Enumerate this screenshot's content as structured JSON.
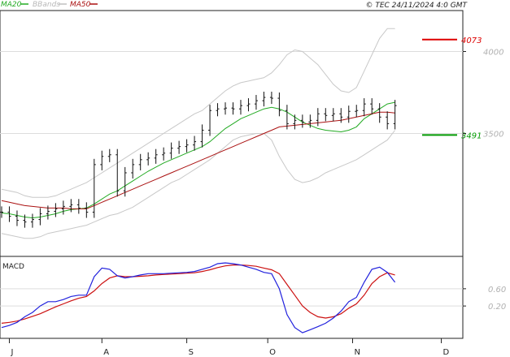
{
  "header": {
    "legend": [
      {
        "label": "MA20",
        "color": "#22aa22"
      },
      {
        "label": "BBands",
        "color": "#c0c0c0"
      },
      {
        "label": "MA50",
        "color": "#aa1111"
      }
    ],
    "copyright": "© TEC 24/11/2024 4:0 GMT"
  },
  "indicator": {
    "label": "MACD"
  },
  "chart_data": {
    "type": "line",
    "price": {
      "x": [
        0,
        2,
        4,
        6,
        8,
        10,
        12,
        14,
        16,
        18,
        20,
        22,
        24,
        26,
        28,
        30,
        32,
        34,
        36,
        38,
        40,
        42,
        44,
        46,
        48,
        50,
        52,
        54,
        56,
        58,
        60,
        62,
        64,
        66,
        68,
        70,
        72,
        74,
        76,
        78,
        80,
        82,
        84,
        86,
        88,
        90,
        92,
        94,
        96,
        98,
        100,
        102
      ],
      "close": [
        3020,
        2995,
        2970,
        2960,
        2975,
        3010,
        3025,
        3040,
        3055,
        3065,
        3045,
        3020,
        3310,
        3360,
        3370,
        3150,
        3260,
        3310,
        3340,
        3350,
        3370,
        3380,
        3410,
        3420,
        3430,
        3450,
        3520,
        3640,
        3650,
        3655,
        3650,
        3670,
        3680,
        3700,
        3720,
        3715,
        3640,
        3560,
        3580,
        3570,
        3580,
        3620,
        3610,
        3620,
        3600,
        3635,
        3640,
        3680,
        3650,
        3600,
        3560,
        3670
      ],
      "ma20": [
        3015,
        3010,
        3000,
        2990,
        2985,
        2990,
        3000,
        3010,
        3025,
        3035,
        3040,
        3045,
        3070,
        3100,
        3130,
        3150,
        3180,
        3210,
        3240,
        3270,
        3295,
        3320,
        3340,
        3360,
        3380,
        3400,
        3420,
        3450,
        3490,
        3530,
        3560,
        3590,
        3610,
        3630,
        3650,
        3660,
        3650,
        3630,
        3600,
        3570,
        3550,
        3530,
        3520,
        3515,
        3510,
        3520,
        3540,
        3590,
        3620,
        3650,
        3680,
        3690
      ],
      "ma50": [
        3090,
        3080,
        3070,
        3060,
        3055,
        3050,
        3045,
        3045,
        3045,
        3040,
        3040,
        3040,
        3060,
        3080,
        3100,
        3120,
        3140,
        3160,
        3180,
        3200,
        3220,
        3240,
        3260,
        3280,
        3300,
        3320,
        3340,
        3360,
        3380,
        3400,
        3420,
        3440,
        3460,
        3480,
        3500,
        3520,
        3540,
        3545,
        3550,
        3555,
        3560,
        3565,
        3570,
        3575,
        3580,
        3590,
        3600,
        3610,
        3620,
        3630,
        3630,
        3625
      ],
      "bb_upper": [
        3160,
        3150,
        3140,
        3120,
        3110,
        3110,
        3110,
        3120,
        3140,
        3160,
        3180,
        3200,
        3230,
        3260,
        3290,
        3320,
        3350,
        3380,
        3410,
        3440,
        3470,
        3500,
        3530,
        3560,
        3590,
        3620,
        3640,
        3680,
        3720,
        3760,
        3790,
        3810,
        3820,
        3830,
        3840,
        3870,
        3920,
        3980,
        4010,
        4000,
        3960,
        3920,
        3860,
        3800,
        3760,
        3750,
        3780,
        3880,
        3980,
        4080,
        4140,
        4140
      ],
      "bb_lower": [
        2890,
        2880,
        2870,
        2860,
        2860,
        2870,
        2890,
        2900,
        2910,
        2920,
        2930,
        2940,
        2960,
        2980,
        3000,
        3010,
        3030,
        3050,
        3080,
        3110,
        3140,
        3170,
        3200,
        3220,
        3250,
        3280,
        3310,
        3340,
        3380,
        3420,
        3460,
        3480,
        3490,
        3500,
        3500,
        3460,
        3360,
        3280,
        3220,
        3200,
        3210,
        3230,
        3260,
        3280,
        3300,
        3320,
        3340,
        3370,
        3400,
        3430,
        3460,
        3520
      ]
    },
    "macd": {
      "x": [
        0,
        2,
        4,
        6,
        8,
        10,
        12,
        14,
        16,
        18,
        20,
        22,
        24,
        26,
        28,
        30,
        32,
        34,
        36,
        38,
        40,
        42,
        44,
        46,
        48,
        50,
        52,
        54,
        56,
        58,
        60,
        62,
        64,
        66,
        68,
        70,
        72,
        74,
        76,
        78,
        80,
        82,
        84,
        86,
        88,
        90,
        92,
        94,
        96,
        98,
        100,
        102
      ],
      "macd": [
        -0.3,
        -0.25,
        -0.18,
        -0.05,
        0.05,
        0.2,
        0.3,
        0.3,
        0.35,
        0.42,
        0.45,
        0.45,
        0.88,
        1.08,
        1.05,
        0.9,
        0.85,
        0.88,
        0.92,
        0.95,
        0.95,
        0.95,
        0.96,
        0.97,
        0.98,
        1.0,
        1.05,
        1.1,
        1.18,
        1.2,
        1.18,
        1.15,
        1.1,
        1.05,
        0.98,
        0.95,
        0.6,
        0.0,
        -0.3,
        -0.42,
        -0.35,
        -0.28,
        -0.2,
        -0.08,
        0.08,
        0.3,
        0.4,
        0.75,
        1.05,
        1.1,
        0.98,
        0.75
      ],
      "signal": [
        -0.2,
        -0.18,
        -0.15,
        -0.1,
        -0.04,
        0.02,
        0.1,
        0.18,
        0.25,
        0.32,
        0.38,
        0.42,
        0.55,
        0.72,
        0.85,
        0.9,
        0.88,
        0.88,
        0.89,
        0.9,
        0.92,
        0.93,
        0.94,
        0.95,
        0.96,
        0.97,
        1.0,
        1.04,
        1.09,
        1.13,
        1.15,
        1.15,
        1.14,
        1.12,
        1.08,
        1.04,
        0.95,
        0.7,
        0.45,
        0.2,
        0.05,
        -0.05,
        -0.08,
        -0.05,
        0.02,
        0.15,
        0.25,
        0.45,
        0.72,
        0.88,
        0.97,
        0.92
      ]
    },
    "resistance": {
      "value": 4073,
      "label": "4073",
      "color": "#dd0000"
    },
    "support": {
      "value": 3491,
      "label": "3491",
      "color": "#009900"
    },
    "price_ylim": [
      2750,
      4250
    ],
    "price_ticks": [
      {
        "value": 4000,
        "label": "4000"
      },
      {
        "value": 3500,
        "label": "3500"
      }
    ],
    "macd_ylim": [
      -0.55,
      1.35
    ],
    "macd_ticks": [
      {
        "value": 0.6,
        "label": "0.60"
      },
      {
        "value": 0.2,
        "label": "0.20"
      }
    ],
    "xlim": [
      0,
      120
    ],
    "x_ticks": [
      {
        "x": 2,
        "label": "J"
      },
      {
        "x": 26,
        "label": "A"
      },
      {
        "x": 48,
        "label": "S"
      },
      {
        "x": 69,
        "label": "O"
      },
      {
        "x": 91,
        "label": "N"
      },
      {
        "x": 114,
        "label": "D"
      }
    ],
    "grid": true
  }
}
